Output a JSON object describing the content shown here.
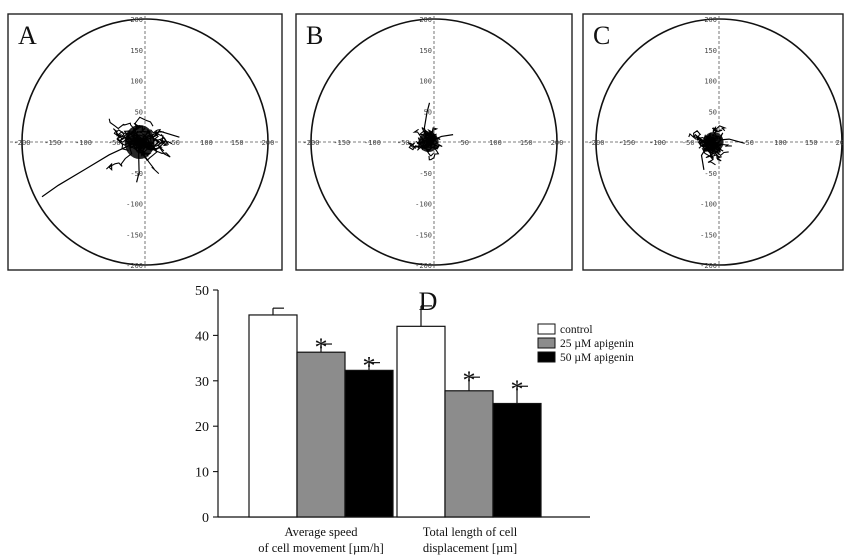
{
  "chart_data": [
    {
      "type": "scatter",
      "panel_label": "A",
      "x_ticks": [
        "-200",
        "-150",
        "-100",
        "-50",
        "50",
        "100",
        "150",
        "200"
      ],
      "y_ticks": [
        "200",
        "150",
        "100",
        "50",
        "-50",
        "-100",
        "-150",
        "-200"
      ],
      "xlim": [
        -200,
        200
      ],
      "ylim": [
        -200,
        200
      ]
    },
    {
      "type": "scatter",
      "panel_label": "B",
      "x_ticks": [
        "-200",
        "-150",
        "-100",
        "-50",
        "50",
        "100",
        "150",
        "200"
      ],
      "y_ticks": [
        "200",
        "150",
        "100",
        "50",
        "-50",
        "-100",
        "-150",
        "-200"
      ],
      "xlim": [
        -200,
        200
      ],
      "ylim": [
        -200,
        200
      ]
    },
    {
      "type": "scatter",
      "panel_label": "C",
      "x_ticks": [
        "-200",
        "-150",
        "-100",
        "-50",
        "50",
        "100",
        "150",
        "200"
      ],
      "y_ticks": [
        "200",
        "150",
        "100",
        "50",
        "-50",
        "-100",
        "-150",
        "-200"
      ],
      "xlim": [
        -200,
        200
      ],
      "ylim": [
        -200,
        200
      ]
    },
    {
      "type": "bar",
      "panel_label": "D",
      "categories": [
        {
          "line1": "Average speed",
          "line2": "of cell movement [µm/h]"
        },
        {
          "line1": "Total length of cell",
          "line2": "displacement [µm]"
        }
      ],
      "series": [
        {
          "name": "control",
          "color": "#ffffff",
          "values": [
            44.5,
            42.0
          ],
          "errors": [
            1.5,
            4.5
          ],
          "significant": [
            false,
            false
          ]
        },
        {
          "name": "25 µM apigenin",
          "color": "#8c8c8c",
          "values": [
            36.3,
            27.8
          ],
          "errors": [
            1.8,
            3.0
          ],
          "significant": [
            true,
            true
          ]
        },
        {
          "name": "50 µM apigenin",
          "color": "#000000",
          "values": [
            32.3,
            25.0
          ],
          "errors": [
            1.7,
            3.8
          ],
          "significant": [
            true,
            true
          ]
        }
      ],
      "significance_marker": "*",
      "y_ticks": [
        0,
        10,
        20,
        30,
        40,
        50
      ],
      "ylim": [
        0,
        50
      ],
      "legend_position": "top-right"
    }
  ]
}
